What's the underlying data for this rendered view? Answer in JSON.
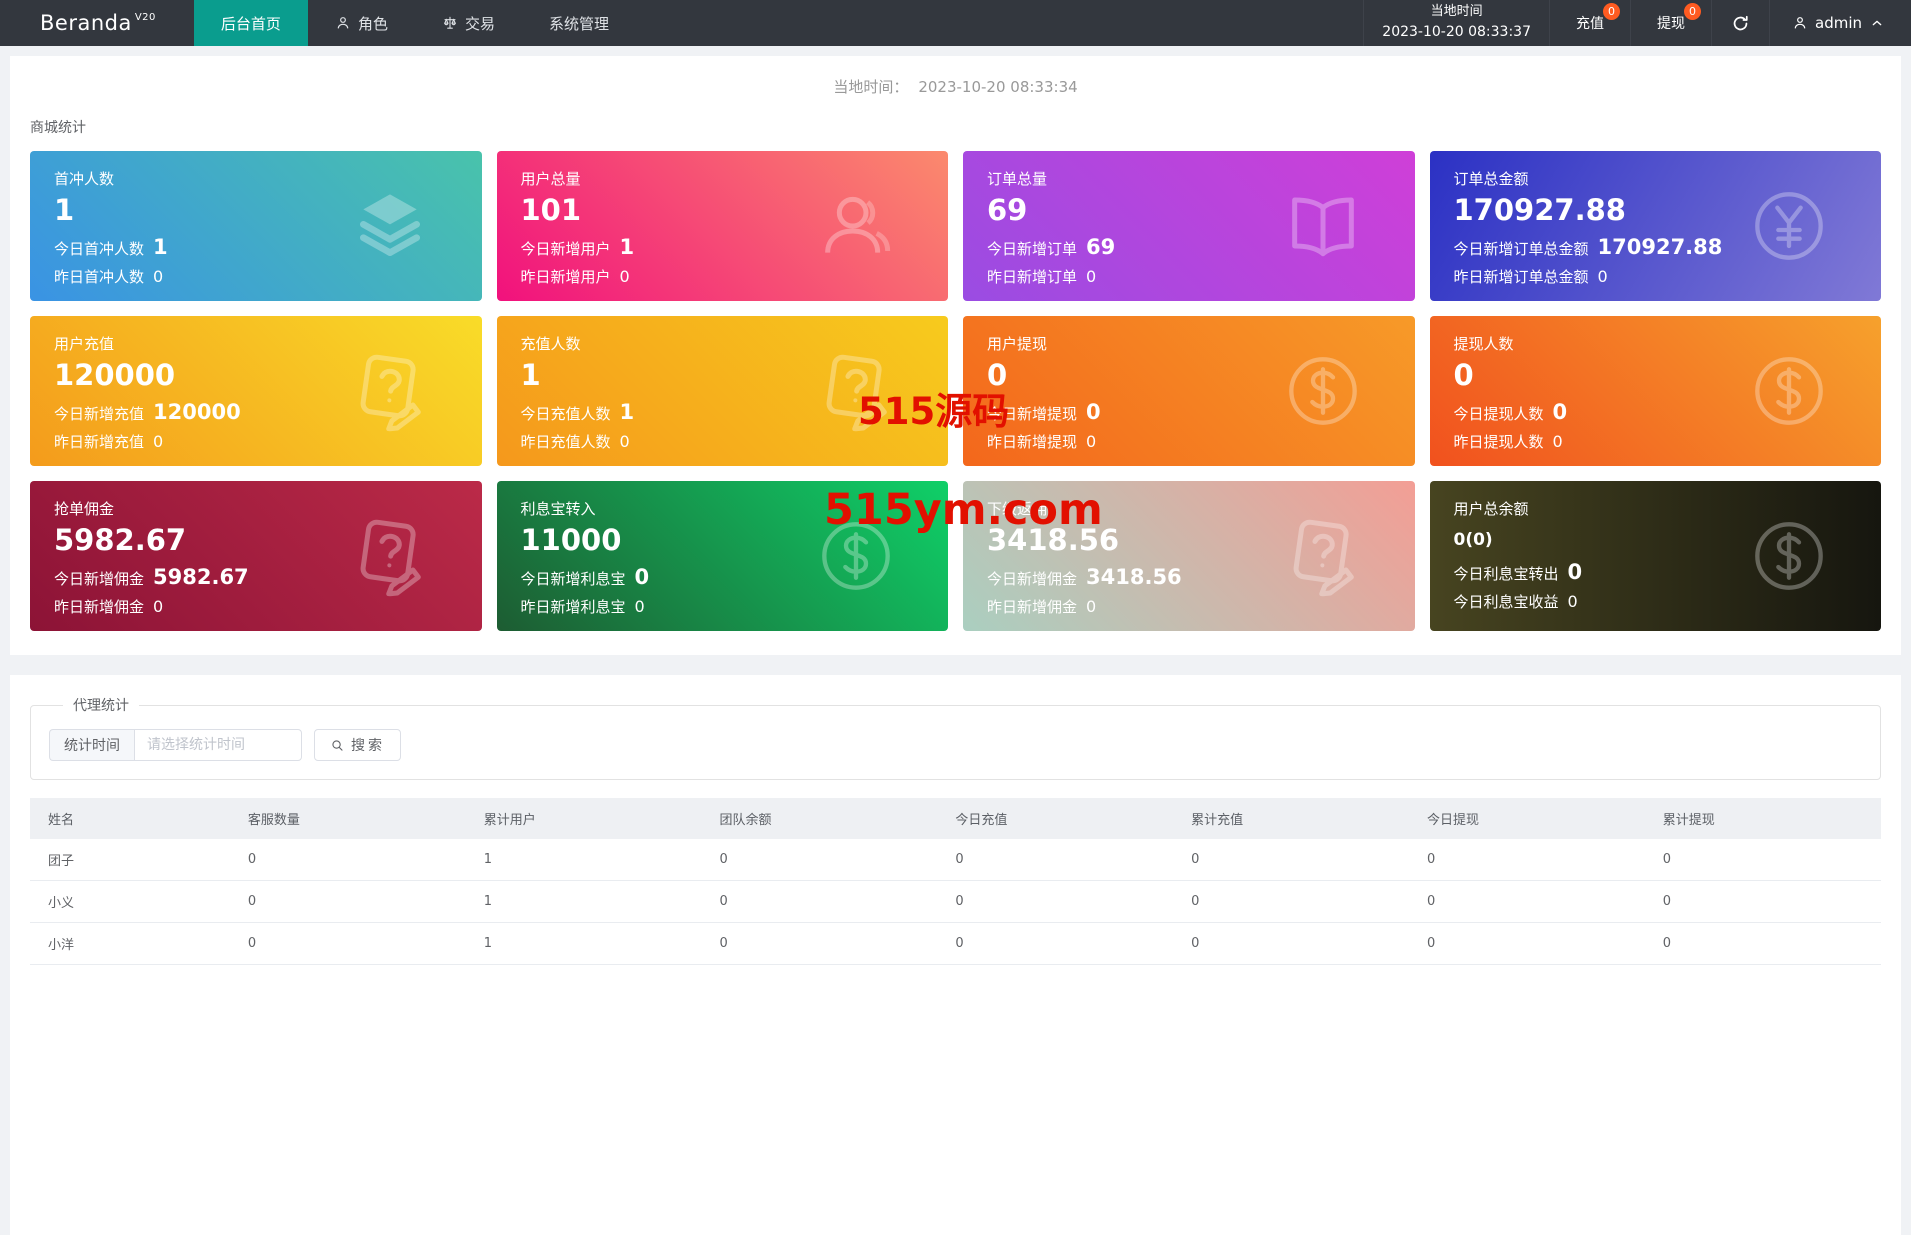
{
  "navbar": {
    "logo": "Beranda",
    "logo_sup": "V20",
    "menu": [
      {
        "label": "后台首页",
        "active": true
      },
      {
        "label": "角色",
        "icon": "person-icon"
      },
      {
        "label": "交易",
        "icon": "scales-icon"
      },
      {
        "label": "系统管理"
      }
    ],
    "local_time_label": "当地时间",
    "local_time": "2023-10-20 08:33:37",
    "recharge_label": "充值",
    "recharge_badge": "0",
    "withdraw_label": "提现",
    "withdraw_badge": "0",
    "username": "admin",
    "badge_color": "#ff5b21",
    "active_tab_color": "#0a9d8e"
  },
  "overview": {
    "time_label": "当地时间：",
    "time_value": "2023-10-20 08:33:34",
    "section_title": "商城统计",
    "cards": [
      {
        "title": "首冲人数",
        "value": "1",
        "line1_label": "今日首冲人数",
        "line1_value": "1",
        "line2_label": "昨日首冲人数",
        "line2_value": "0",
        "icon": "layers-icon",
        "gradient_from": "#3a93e4",
        "gradient_to": "#49c3ab",
        "gradient_dir": "45deg"
      },
      {
        "title": "用户总量",
        "value": "101",
        "line1_label": "今日新增用户",
        "line1_value": "1",
        "line2_label": "昨日新增用户",
        "line2_value": "0",
        "icon": "user-icon",
        "gradient_from": "#f1117d",
        "gradient_to": "#fb8a6d",
        "gradient_dir": "45deg"
      },
      {
        "title": "订单总量",
        "value": "69",
        "line1_label": "今日新增订单",
        "line1_value": "69",
        "line2_label": "昨日新增订单",
        "line2_value": "0",
        "icon": "book-icon",
        "gradient_from": "#9a4ce2",
        "gradient_to": "#cf3fd8",
        "gradient_dir": "45deg"
      },
      {
        "title": "订单总金额",
        "value": "170927.88",
        "line1_label": "今日新增订单总金额",
        "line1_value": "170927.88",
        "line2_label": "昨日新增订单总金额",
        "line2_value": "0",
        "icon": "yuan-circle-icon",
        "gradient_from": "#2b31c4",
        "gradient_to": "#8079d6",
        "gradient_dir": "120deg"
      },
      {
        "title": "用户充值",
        "value": "120000",
        "line1_label": "今日新增充值",
        "line1_value": "120000",
        "line2_label": "昨日新增充值",
        "line2_value": "0",
        "icon": "contract-icon",
        "gradient_from": "#f49b1c",
        "gradient_to": "#f9dc28",
        "gradient_dir": "45deg"
      },
      {
        "title": "充值人数",
        "value": "1",
        "line1_label": "今日充值人数",
        "line1_value": "1",
        "line2_label": "昨日充值人数",
        "line2_value": "0",
        "icon": "contract-icon",
        "gradient_from": "#f5981c",
        "gradient_to": "#f7cb1d",
        "gradient_dir": "45deg"
      },
      {
        "title": "用户提现",
        "value": "0",
        "line1_label": "今日新增提现",
        "line1_value": "0",
        "line2_label": "昨日新增提现",
        "line2_value": "0",
        "icon": "dollar-circle-icon",
        "gradient_from": "#f3671c",
        "gradient_to": "#f79a28",
        "gradient_dir": "45deg"
      },
      {
        "title": "提现人数",
        "value": "0",
        "line1_label": "今日提现人数",
        "line1_value": "0",
        "line2_label": "昨日提现人数",
        "line2_value": "0",
        "icon": "dollar-circle-icon",
        "gradient_from": "#f1511e",
        "gradient_to": "#f6a12c",
        "gradient_dir": "45deg"
      },
      {
        "title": "抢单佣金",
        "value": "5982.67",
        "line1_label": "今日新增佣金",
        "line1_value": "5982.67",
        "line2_label": "昨日新增佣金",
        "line2_value": "0",
        "icon": "contract-icon",
        "gradient_from": "#8c1336",
        "gradient_to": "#bb2a48",
        "gradient_dir": "45deg"
      },
      {
        "title": "利息宝转入",
        "value": "11000",
        "line1_label": "今日新增利息宝",
        "line1_value": "0",
        "line2_label": "昨日新增利息宝",
        "line2_value": "0",
        "icon": "dollar-circle-icon",
        "gradient_from": "#1d5c32",
        "gradient_to": "#0fd068",
        "gradient_dir": "45deg"
      },
      {
        "title": "下级返佣",
        "value": "3418.56",
        "line1_label": "今日新增佣金",
        "line1_value": "3418.56",
        "line2_label": "昨日新增佣金",
        "line2_value": "0",
        "icon": "contract-icon",
        "gradient_from": "#aacfc0",
        "gradient_to": "#f39e95",
        "gradient_dir": "45deg"
      },
      {
        "title": "用户总余额",
        "value": "0(0)",
        "value_small": true,
        "line1_label": "今日利息宝转出",
        "line1_value": "0",
        "line2_label": "今日利息宝收益",
        "line2_value": "0",
        "icon": "dollar-circle-icon",
        "gradient_from": "#474420",
        "gradient_to": "#16160f",
        "gradient_dir": "90deg"
      }
    ]
  },
  "watermarks": [
    "515源码",
    "515ym.com"
  ],
  "agent": {
    "legend": "代理统计",
    "filter_label": "统计时间",
    "filter_placeholder": "请选择统计时间",
    "search_label": "搜索",
    "table": {
      "headers": [
        "姓名",
        "客服数量",
        "累计用户",
        "团队余额",
        "今日充值",
        "累计充值",
        "今日提现",
        "累计提现"
      ],
      "rows": [
        [
          "团子",
          "0",
          "1",
          "0",
          "0",
          "0",
          "0",
          "0"
        ],
        [
          "小义",
          "0",
          "1",
          "0",
          "0",
          "0",
          "0",
          "0"
        ],
        [
          "小洋",
          "0",
          "1",
          "0",
          "0",
          "0",
          "0",
          "0"
        ]
      ]
    }
  }
}
